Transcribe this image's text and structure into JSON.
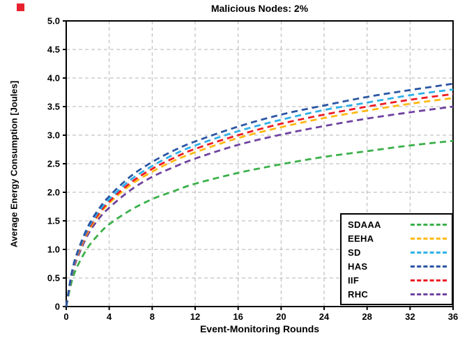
{
  "chart_data": {
    "type": "line",
    "title": "Malicious Nodes: 2%",
    "xlabel": "Event-Monitoring Rounds",
    "ylabel": "Average Energy Consumption [Joules]",
    "xlim": [
      0,
      36
    ],
    "ylim": [
      0,
      5
    ],
    "xticks": [
      0,
      4,
      8,
      12,
      16,
      20,
      24,
      28,
      32,
      36
    ],
    "xtick_labels": [
      "0",
      "4",
      "8",
      "12",
      "16",
      "20",
      "24",
      "28",
      "32",
      "36"
    ],
    "yticks": [
      0,
      0.5,
      1.0,
      1.5,
      2.0,
      2.5,
      3.0,
      3.5,
      4.0,
      4.5,
      5.0
    ],
    "ytick_labels": [
      "0",
      "0.5",
      "1.0",
      "1.5",
      "2.0",
      "2.5",
      "3.0",
      "3.5",
      "4.0",
      "4.5",
      "5.0"
    ],
    "grid": true,
    "grid_style": "dashed",
    "line_style": "dashed",
    "legend_position": "lower right",
    "x": [
      0,
      0.5,
      1,
      2,
      3,
      4,
      6,
      8,
      10,
      12,
      16,
      20,
      24,
      28,
      32,
      36
    ],
    "series": [
      {
        "name": "SDAAA",
        "color": "#3bb04a",
        "values": [
          0,
          0.43,
          0.69,
          1.03,
          1.26,
          1.44,
          1.69,
          1.88,
          2.02,
          2.15,
          2.34,
          2.49,
          2.62,
          2.72,
          2.82,
          2.9
        ]
      },
      {
        "name": "EEHA",
        "color": "#fdb913",
        "values": [
          0,
          0.54,
          0.87,
          1.3,
          1.59,
          1.81,
          2.13,
          2.36,
          2.55,
          2.7,
          2.95,
          3.14,
          3.3,
          3.43,
          3.55,
          3.65
        ]
      },
      {
        "name": "SD",
        "color": "#2fb0e8",
        "values": [
          0,
          0.56,
          0.91,
          1.36,
          1.66,
          1.88,
          2.22,
          2.46,
          2.66,
          2.82,
          3.07,
          3.27,
          3.44,
          3.57,
          3.7,
          3.8
        ]
      },
      {
        "name": "HAS",
        "color": "#2c56a4",
        "values": [
          0,
          0.58,
          0.93,
          1.39,
          1.7,
          1.93,
          2.28,
          2.53,
          2.73,
          2.89,
          3.15,
          3.36,
          3.52,
          3.67,
          3.79,
          3.9
        ]
      },
      {
        "name": "IIF",
        "color": "#ed1c24",
        "values": [
          0,
          0.55,
          0.89,
          1.33,
          1.62,
          1.84,
          2.17,
          2.41,
          2.6,
          2.76,
          3.0,
          3.2,
          3.36,
          3.5,
          3.62,
          3.72
        ]
      },
      {
        "name": "RHC",
        "color": "#6f42a0",
        "values": [
          0,
          0.52,
          0.83,
          1.25,
          1.53,
          1.73,
          2.04,
          2.27,
          2.44,
          2.59,
          2.83,
          3.01,
          3.16,
          3.29,
          3.4,
          3.5
        ]
      }
    ],
    "draw_order": [
      "SDAAA",
      "RHC",
      "EEHA",
      "IIF",
      "SD",
      "HAS"
    ]
  }
}
